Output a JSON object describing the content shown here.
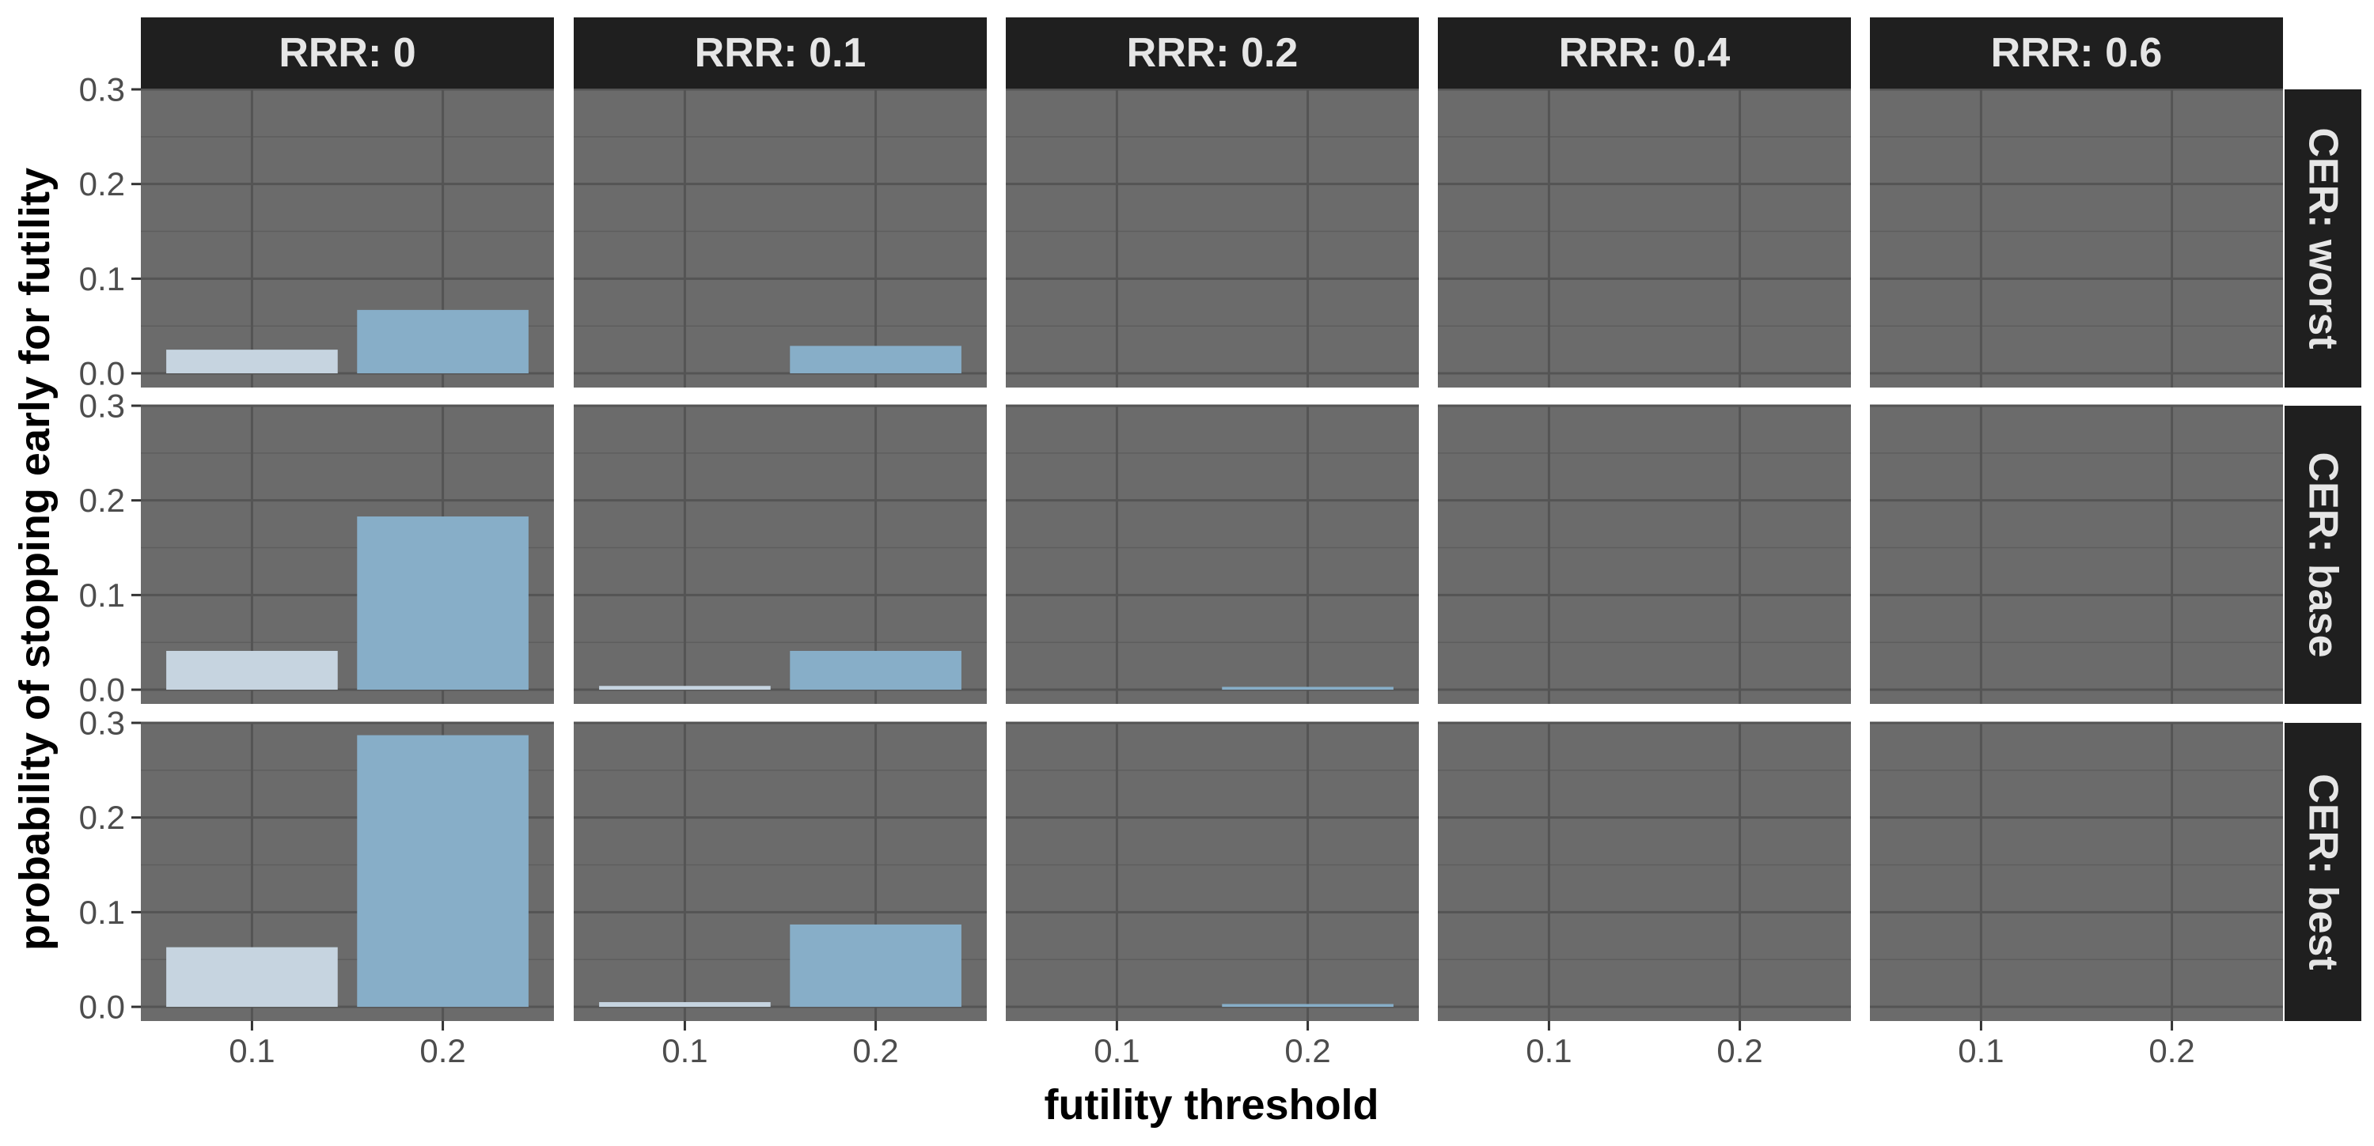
{
  "chart_data": {
    "type": "bar",
    "xlabel": "futility threshold",
    "ylabel": "probability of stopping early for futility",
    "categories": [
      "0.1",
      "0.2"
    ],
    "ylim": [
      -0.015,
      0.3
    ],
    "yticks": [
      "0.0",
      "0.1",
      "0.2",
      "0.3"
    ],
    "yticks_values": [
      0.0,
      0.1,
      0.2,
      0.3
    ],
    "grid": true,
    "facet_columns": [
      "RRR: 0",
      "RRR: 0.1",
      "RRR: 0.2",
      "RRR: 0.4",
      "RRR: 0.6"
    ],
    "facet_rows": [
      "CER: worst",
      "CER: base",
      "CER: best"
    ],
    "bar_colors": [
      "#c6d4e0",
      "#87aec8"
    ],
    "panel_background": "#6b6b6b",
    "strip_background": "#1f1f1f",
    "values": [
      [
        [
          0.025,
          0.067
        ],
        [
          0.0,
          0.029
        ],
        [
          0.0,
          0.0
        ],
        [
          0.0,
          0.0
        ],
        [
          0.0,
          0.0
        ]
      ],
      [
        [
          0.041,
          0.183
        ],
        [
          0.004,
          0.041
        ],
        [
          0.0,
          0.003
        ],
        [
          0.0,
          0.0
        ],
        [
          0.0,
          0.0
        ]
      ],
      [
        [
          0.063,
          0.287
        ],
        [
          0.005,
          0.087
        ],
        [
          0.0,
          0.003
        ],
        [
          0.0,
          0.0
        ],
        [
          0.0,
          0.0
        ]
      ]
    ]
  }
}
